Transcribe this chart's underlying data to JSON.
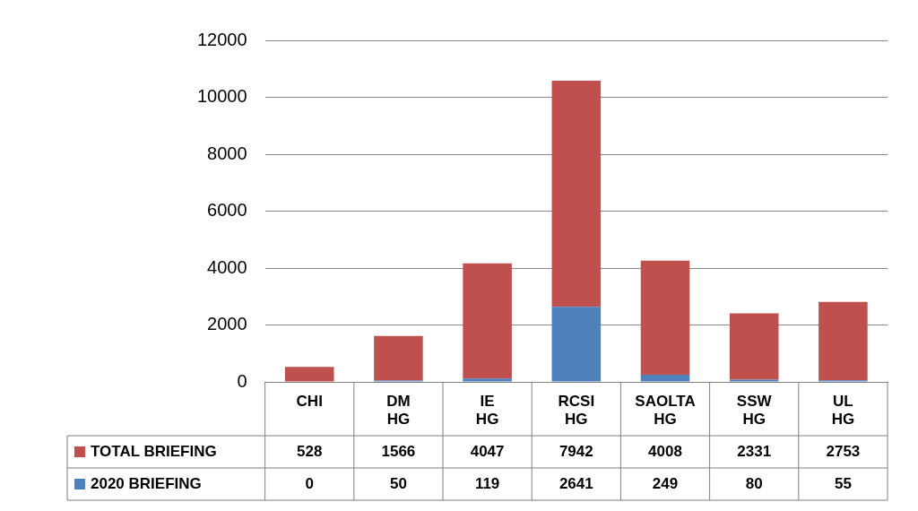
{
  "chart_data": {
    "type": "bar",
    "stacked": true,
    "categories": [
      "CHI",
      "DM HG",
      "IE HG",
      "RCSI HG",
      "SAOLTA HG",
      "SSW HG",
      "UL HG"
    ],
    "series": [
      {
        "name": "2020 BRIEFING",
        "color": "#4f81bd",
        "values": [
          0,
          50,
          119,
          2641,
          249,
          80,
          55
        ]
      },
      {
        "name": "TOTAL BRIEFING",
        "color": "#c0504d",
        "values": [
          528,
          1566,
          4047,
          7942,
          4008,
          2331,
          2753
        ]
      }
    ],
    "ylim": [
      0,
      12000
    ],
    "yticks": [
      0,
      2000,
      4000,
      6000,
      8000,
      10000,
      12000
    ],
    "grid": "y",
    "legend": "bottom",
    "data_labels": true
  }
}
